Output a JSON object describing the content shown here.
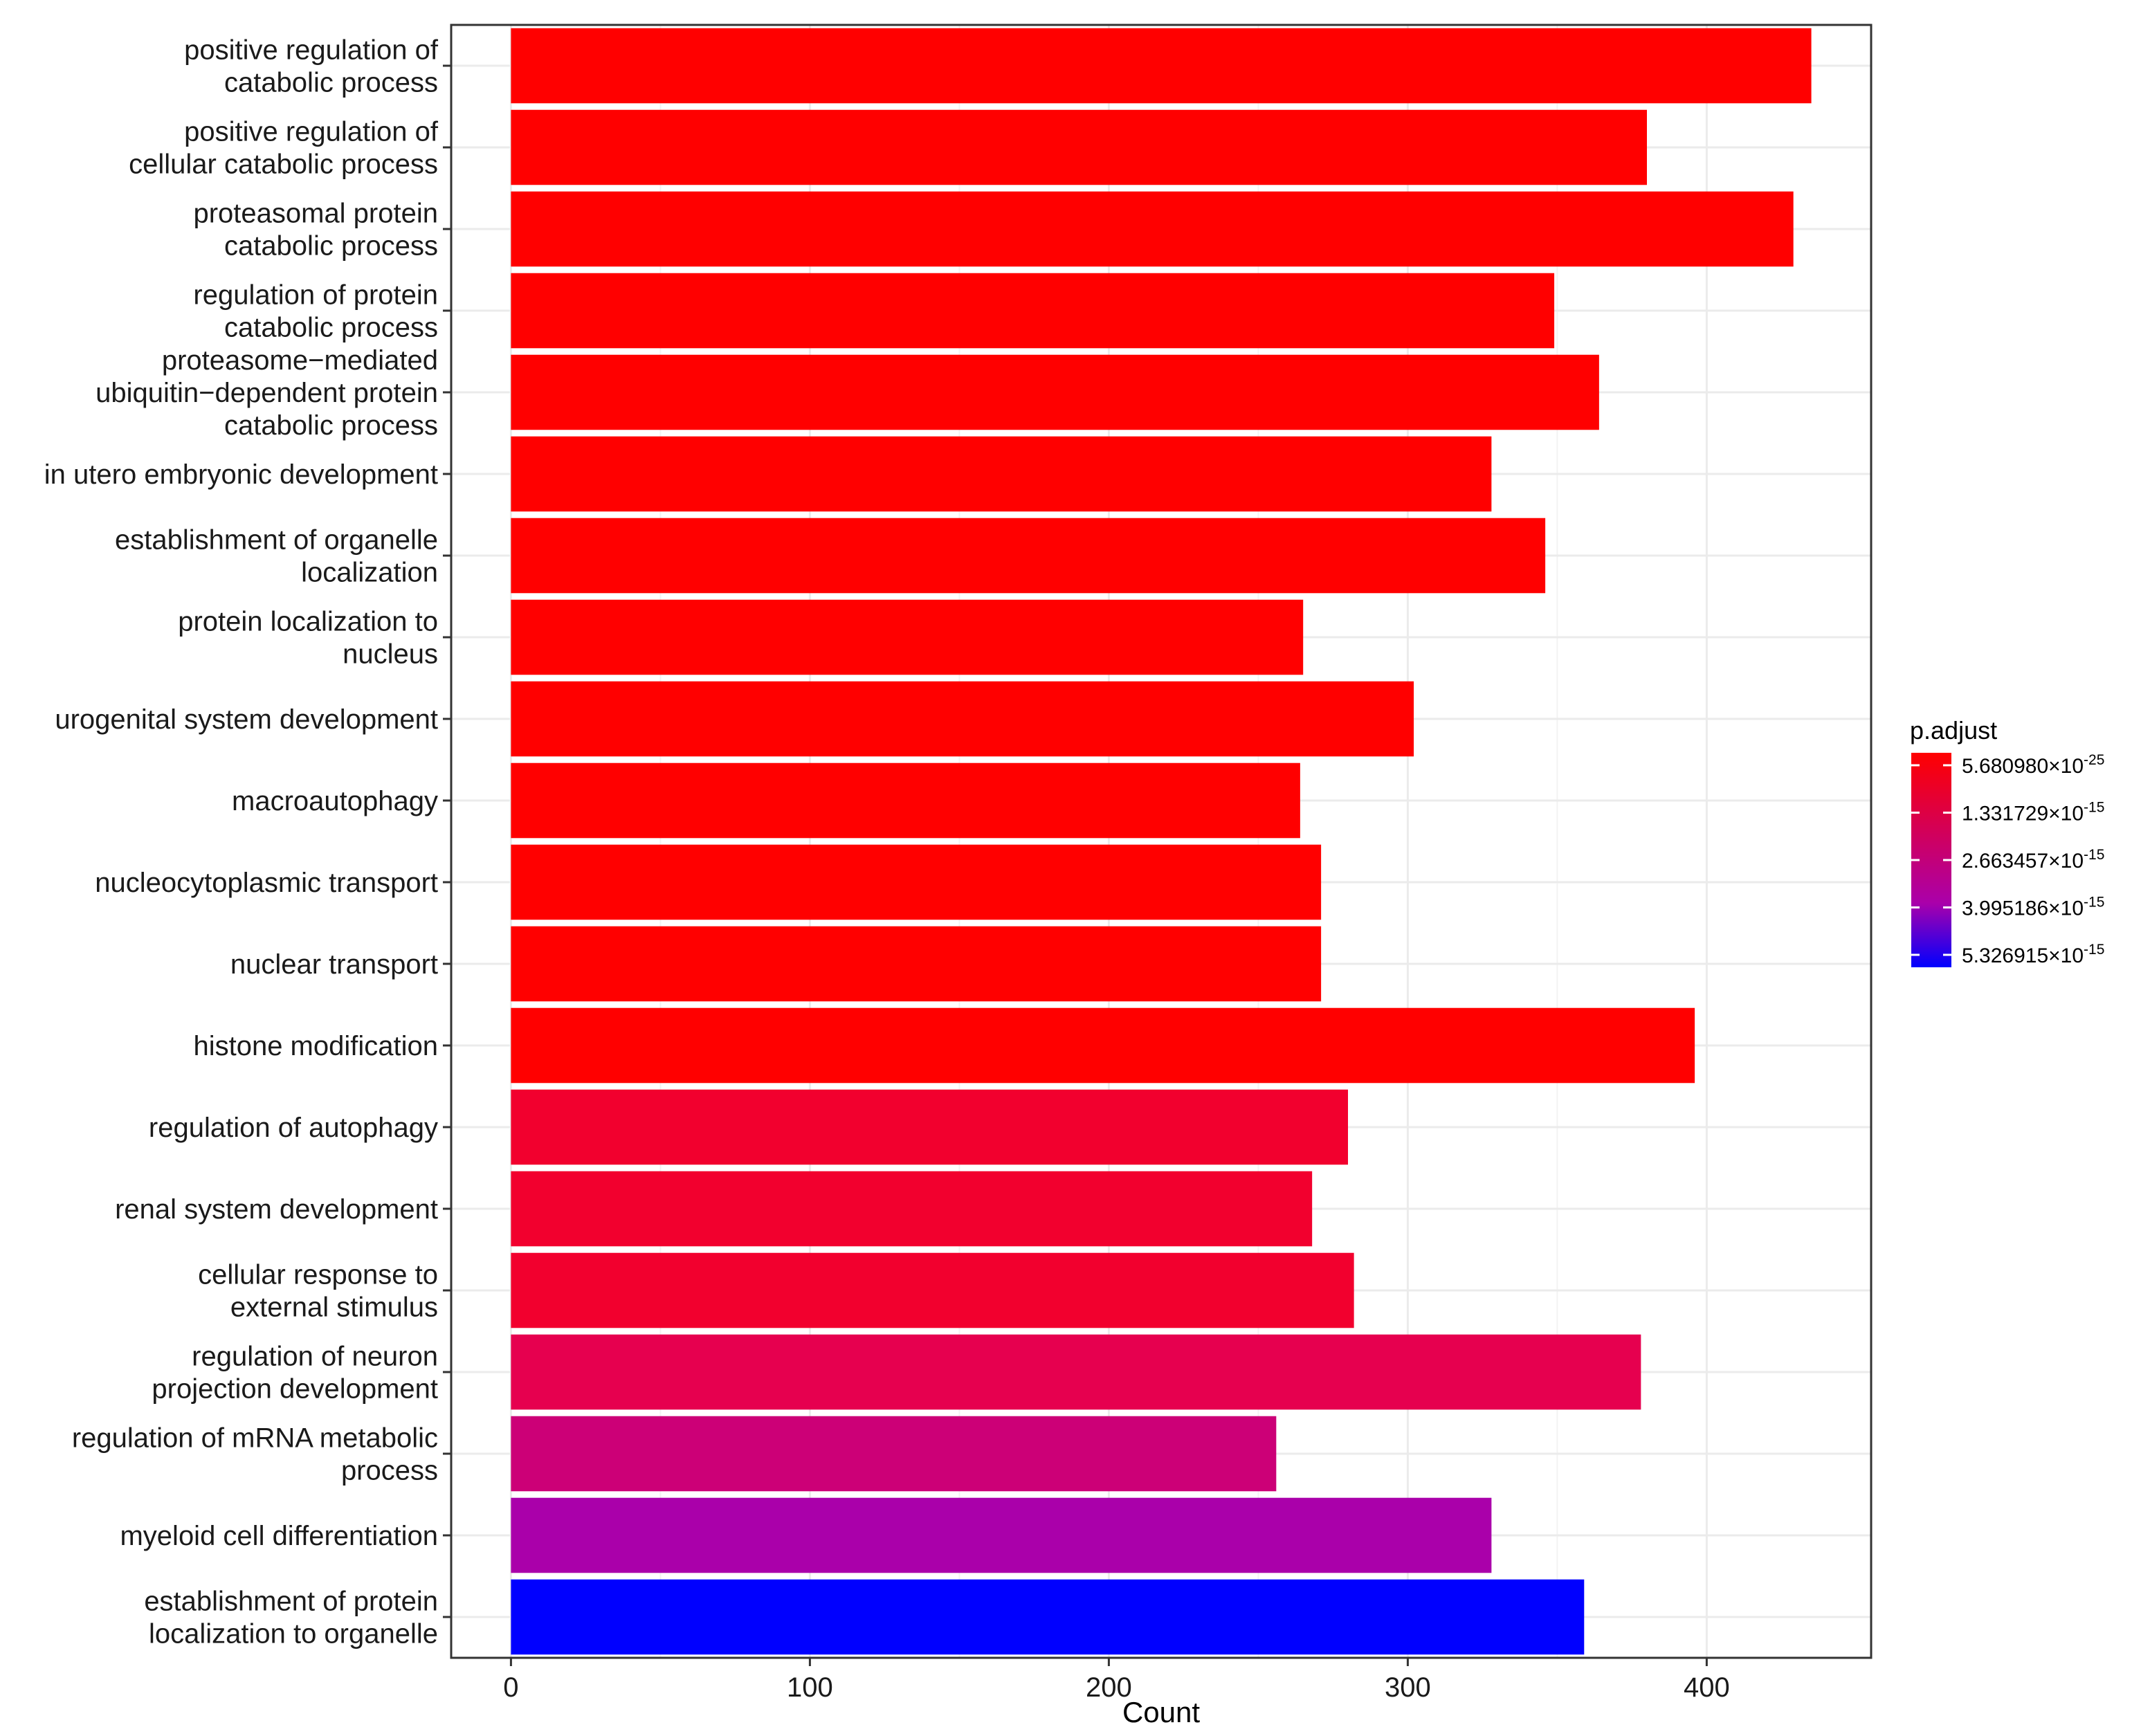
{
  "chart_data": {
    "type": "bar",
    "orientation": "horizontal",
    "title": "",
    "xlabel": "Count",
    "ylabel": "",
    "xlim": [
      -20,
      455
    ],
    "xticks": [
      "0",
      "100",
      "200",
      "300",
      "400"
    ],
    "xtick_values": [
      0,
      100,
      200,
      300,
      400
    ],
    "grid": true,
    "legend_position": "right",
    "categories": [
      [
        "positive regulation of",
        "catabolic process"
      ],
      [
        "positive regulation of",
        "cellular catabolic process"
      ],
      [
        "proteasomal protein",
        "catabolic process"
      ],
      [
        "regulation of protein",
        "catabolic process"
      ],
      [
        "proteasome−mediated",
        "ubiquitin−dependent protein",
        "catabolic process"
      ],
      [
        "in utero embryonic development"
      ],
      [
        "establishment of organelle",
        "localization"
      ],
      [
        "protein localization to",
        "nucleus"
      ],
      [
        "urogenital system development"
      ],
      [
        "macroautophagy"
      ],
      [
        "nucleocytoplasmic transport"
      ],
      [
        "nuclear transport"
      ],
      [
        "histone modification"
      ],
      [
        "regulation of autophagy"
      ],
      [
        "renal system development"
      ],
      [
        "cellular response to",
        "external stimulus"
      ],
      [
        "regulation of neuron",
        "projection development"
      ],
      [
        "regulation of mRNA metabolic",
        "process"
      ],
      [
        "myeloid cell differentiation"
      ],
      [
        "establishment of protein",
        "localization to organelle"
      ]
    ],
    "values": [
      435,
      380,
      429,
      349,
      364,
      328,
      346,
      265,
      302,
      264,
      271,
      271,
      396,
      280,
      268,
      282,
      378,
      256,
      328,
      359
    ],
    "colors": [
      "#ff0000",
      "#ff0000",
      "#ff0000",
      "#ff0000",
      "#ff0000",
      "#ff0000",
      "#ff0000",
      "#ff0000",
      "#ff0000",
      "#ff0000",
      "#ff0000",
      "#ff0000",
      "#ff0000",
      "#f2002e",
      "#f2002e",
      "#f2002e",
      "#e6004f",
      "#cc0077",
      "#aa00aa",
      "#0000ff"
    ],
    "legend": {
      "title": "p.adjust",
      "gradient_top": "#ff0000",
      "gradient_mid": "#aa00aa",
      "gradient_bottom": "#0000ff",
      "labels": [
        {
          "mantissa": "5.680980×10",
          "exponent": "-25"
        },
        {
          "mantissa": "1.331729×10",
          "exponent": "-15"
        },
        {
          "mantissa": "2.663457×10",
          "exponent": "-15"
        },
        {
          "mantissa": "3.995186×10",
          "exponent": "-15"
        },
        {
          "mantissa": "5.326915×10",
          "exponent": "-15"
        }
      ]
    }
  }
}
